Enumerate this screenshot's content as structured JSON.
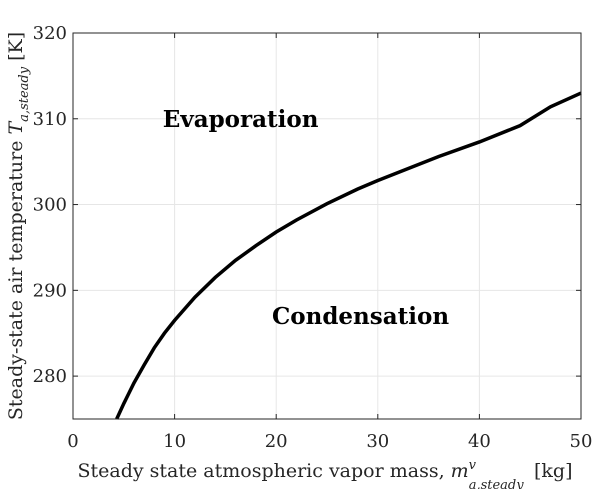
{
  "chart_data": {
    "type": "line",
    "xlabel": "Steady state atmospheric vapor mass, m^v_{a,steady} [kg]",
    "ylabel": "Steady-state air temperature T_{a,steady} [K]",
    "xlim": [
      0,
      50
    ],
    "ylim": [
      275,
      320
    ],
    "xticks": [
      0,
      10,
      20,
      30,
      40,
      50
    ],
    "yticks": [
      280,
      290,
      300,
      310,
      320
    ],
    "grid": true,
    "series": [
      {
        "color": "#000000",
        "x": [
          4.3,
          5,
          6,
          7,
          8,
          9,
          10,
          12,
          14,
          16,
          18,
          20,
          22,
          25,
          28,
          30,
          33,
          36,
          40,
          44,
          47,
          50
        ],
        "y": [
          275.0,
          276.8,
          279.2,
          281.3,
          283.3,
          285.0,
          286.5,
          289.2,
          291.5,
          293.5,
          295.2,
          296.8,
          298.2,
          300.1,
          301.8,
          302.8,
          304.2,
          305.6,
          307.3,
          309.2,
          311.4,
          313.0
        ]
      }
    ],
    "annotations": [
      {
        "text": "Evaporation",
        "x": 16.5,
        "y": 310
      },
      {
        "text": "Condensation",
        "x": 28.3,
        "y": 287
      }
    ]
  }
}
